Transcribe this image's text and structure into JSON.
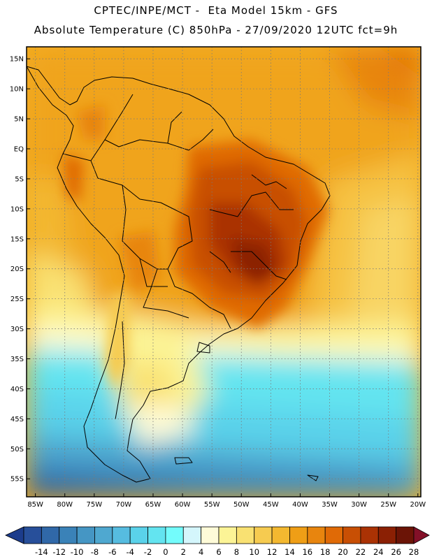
{
  "header": {
    "line1": "CPTEC/INPE/MCT -  Eta Model 15km - GFS",
    "line2": "Absolute Temperature (C) 850hPa - 27/09/2020 12UTC fct=9h"
  },
  "map": {
    "lat_labels": [
      "15N",
      "10N",
      "5N",
      "EQ",
      "5S",
      "10S",
      "15S",
      "20S",
      "25S",
      "30S",
      "35S",
      "40S",
      "45S",
      "50S",
      "55S"
    ],
    "lat_values": [
      15,
      10,
      5,
      0,
      -5,
      -10,
      -15,
      -20,
      -25,
      -30,
      -35,
      -40,
      -45,
      -50,
      -55
    ],
    "lon_labels": [
      "85W",
      "80W",
      "75W",
      "70W",
      "65W",
      "60W",
      "55W",
      "50W",
      "45W",
      "40W",
      "35W",
      "30W",
      "25W",
      "20W"
    ],
    "lon_values": [
      -85,
      -80,
      -75,
      -70,
      -65,
      -60,
      -55,
      -50,
      -45,
      -40,
      -35,
      -30,
      -25,
      -20
    ],
    "extent": {
      "lon_min": -86.5,
      "lon_max": -19.5,
      "lat_min": -58,
      "lat_max": 17
    },
    "gridlines": "dotted",
    "coastline_color": "#000000"
  },
  "colorbar": {
    "values": [
      "-14",
      "-12",
      "-10",
      "-8",
      "-6",
      "-4",
      "-2",
      "0",
      "2",
      "4",
      "6",
      "8",
      "10",
      "12",
      "14",
      "16",
      "18",
      "20",
      "22",
      "24",
      "26",
      "28"
    ],
    "colors": [
      "#1c3c8c",
      "#274f9a",
      "#3068a8",
      "#3a82b8",
      "#4596c4",
      "#4fa8d0",
      "#56bce0",
      "#5ad2ea",
      "#63e4f0",
      "#73fcfc",
      "#d4f6fc",
      "#fefbd8",
      "#fcf496",
      "#f9e172",
      "#f6cb50",
      "#f3b830",
      "#ef9e16",
      "#e8850e",
      "#e06a06",
      "#c84f04",
      "#aa3204",
      "#8b2004",
      "#6b1406",
      "#831028"
    ]
  }
}
